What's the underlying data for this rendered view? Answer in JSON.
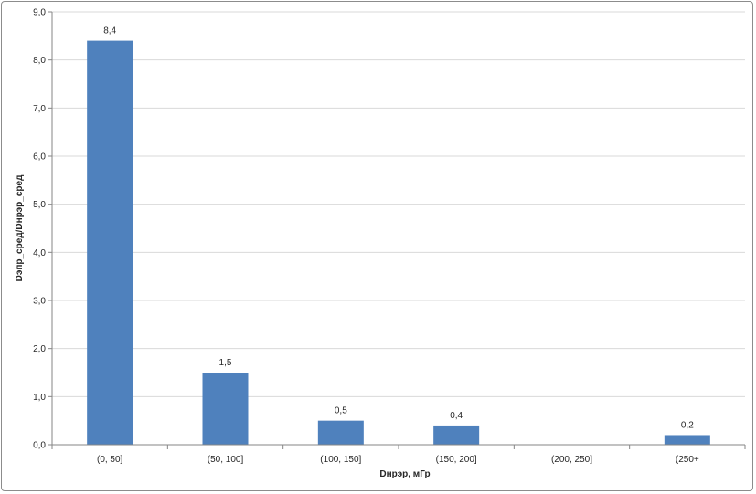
{
  "chart_data": {
    "type": "bar",
    "categories": [
      "(0, 50]",
      "(50, 100]",
      "(100, 150]",
      "(150, 200]",
      "(200, 250]",
      "(250+"
    ],
    "values": [
      8.4,
      1.5,
      0.5,
      0.4,
      null,
      0.2
    ],
    "data_labels": [
      "8,4",
      "1,5",
      "0,5",
      "0,4",
      "",
      "0,2"
    ],
    "xlabel": "Dнрэр, мГр",
    "ylabel": "Dэпр_сред/Dнрэр_сред",
    "ylim": [
      0,
      9
    ],
    "yticks": [
      0,
      1,
      2,
      3,
      4,
      5,
      6,
      7,
      8,
      9
    ],
    "ytick_labels": [
      "0,0",
      "1,0",
      "2,0",
      "3,0",
      "4,0",
      "5,0",
      "6,0",
      "7,0",
      "8,0",
      "9,0"
    ],
    "grid": true,
    "legend": false,
    "colors": {
      "bar": "#4f81bd",
      "grid": "#d9d9d9",
      "axis": "#868686"
    }
  }
}
